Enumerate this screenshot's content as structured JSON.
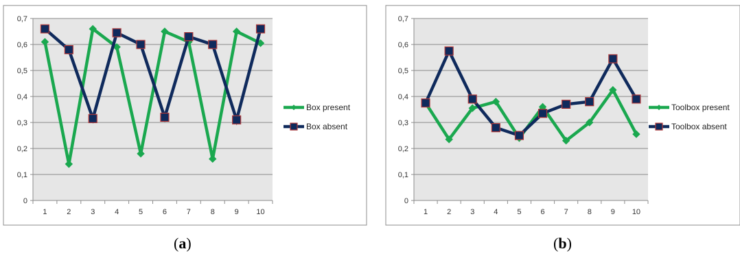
{
  "chart_data": [
    {
      "type": "line",
      "panel_label": "(a)",
      "panel_letter": "a",
      "categories": [
        "1",
        "2",
        "3",
        "4",
        "5",
        "6",
        "7",
        "8",
        "9",
        "10"
      ],
      "ylim": [
        0,
        0.7
      ],
      "yticks": [
        "0",
        "0,1",
        "0,2",
        "0,3",
        "0,4",
        "0,5",
        "0,6",
        "0,7"
      ],
      "grid": true,
      "legend_position": "right",
      "series": [
        {
          "name": "Box present",
          "color": "#1aa84f",
          "marker": "diamond",
          "values": [
            0.61,
            0.14,
            0.66,
            0.59,
            0.18,
            0.65,
            0.61,
            0.16,
            0.65,
            0.605
          ]
        },
        {
          "name": "Box absent",
          "color": "#0f2a5c",
          "marker": "square",
          "values": [
            0.66,
            0.58,
            0.315,
            0.645,
            0.6,
            0.32,
            0.63,
            0.6,
            0.31,
            0.66
          ]
        }
      ]
    },
    {
      "type": "line",
      "panel_label": "(b)",
      "panel_letter": "b",
      "categories": [
        "1",
        "2",
        "3",
        "4",
        "5",
        "6",
        "7",
        "8",
        "9",
        "10"
      ],
      "ylim": [
        0,
        0.7
      ],
      "yticks": [
        "0",
        "0,1",
        "0,2",
        "0,3",
        "0,4",
        "0,5",
        "0,6",
        "0,7"
      ],
      "grid": true,
      "legend_position": "right",
      "series": [
        {
          "name": "Toolbox present",
          "color": "#1aa84f",
          "marker": "diamond",
          "values": [
            0.375,
            0.235,
            0.355,
            0.38,
            0.24,
            0.36,
            0.23,
            0.3,
            0.425,
            0.255
          ]
        },
        {
          "name": "Toolbox absent",
          "color": "#0f2a5c",
          "marker": "square",
          "values": [
            0.375,
            0.575,
            0.39,
            0.28,
            0.25,
            0.335,
            0.37,
            0.38,
            0.545,
            0.39
          ]
        }
      ]
    }
  ]
}
